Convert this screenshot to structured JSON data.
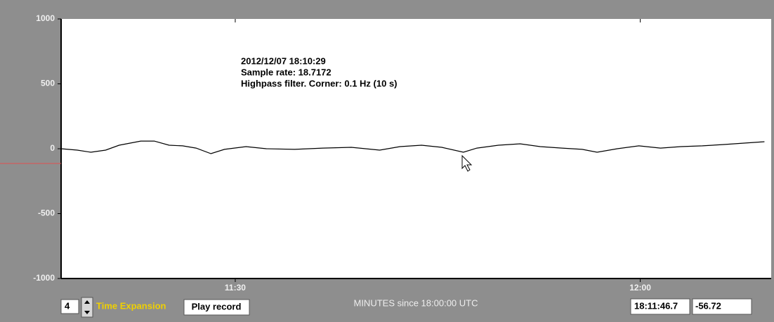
{
  "chart_data": {
    "type": "line",
    "annotations": [
      "2012/12/07 18:10:29",
      "Sample rate: 18.7172",
      "Highpass filter. Corner: 0.1 Hz (10 s)"
    ],
    "x_label": "MINUTES since 18:00:00 UTC",
    "x": [
      677.1,
      678.3,
      679.3,
      680.4,
      681.4,
      683.0,
      684.0,
      685.1,
      686.1,
      687.1,
      688.2,
      689.2,
      690.8,
      692.3,
      694.4,
      696.5,
      698.6,
      700.7,
      702.2,
      703.8,
      705.3,
      706.9,
      707.9,
      709.5,
      711.1,
      712.6,
      714.2,
      715.7,
      716.8,
      718.3,
      719.9,
      721.5,
      723.0,
      724.6,
      726.1,
      727.7,
      729.2
    ],
    "series": [
      {
        "color": "#000000",
        "values": [
          0,
          -11,
          -27,
          -11,
          27,
          59,
          59,
          27,
          22,
          5,
          -38,
          -5,
          16,
          0,
          -5,
          5,
          11,
          -11,
          16,
          27,
          11,
          -27,
          5,
          27,
          38,
          16,
          5,
          -5,
          -27,
          0,
          22,
          5,
          16,
          22,
          32,
          43,
          54
        ]
      }
    ],
    "xlim": [
      677.1,
      729.7
    ],
    "xticks": [
      {
        "value": 690,
        "label": "11:30"
      },
      {
        "value": 720,
        "label": "12:00"
      }
    ],
    "ylim": [
      -1000,
      1000
    ],
    "yticks": [
      1000,
      500,
      0,
      -500,
      -1000
    ]
  },
  "controls": {
    "expansion_value": "4",
    "expansion_label": "Time Expansion",
    "play_button": "Play record",
    "time_readout": "18:11:46.7",
    "value_readout": "-56.72"
  }
}
